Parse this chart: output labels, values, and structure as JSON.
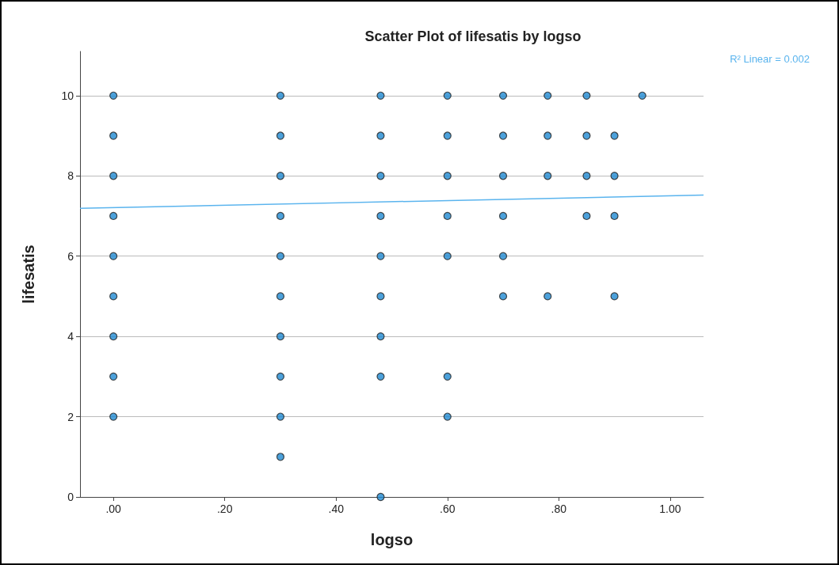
{
  "chart_data": {
    "type": "scatter",
    "title": "Scatter Plot of lifesatis by logso",
    "xlabel": "logso",
    "ylabel": "lifesatis",
    "annotations": [
      "R² Linear = 0.002"
    ],
    "xlim": [
      -0.06,
      1.06
    ],
    "xticks": [
      {
        "value": 0,
        "label": ".00"
      },
      {
        "value": 0.2,
        "label": ".20"
      },
      {
        "value": 0.4,
        "label": ".40"
      },
      {
        "value": 0.6,
        "label": ".60"
      },
      {
        "value": 0.8,
        "label": ".80"
      },
      {
        "value": 1,
        "label": "1.00"
      }
    ],
    "ylim": [
      0,
      11.1
    ],
    "yticks": [
      0,
      2,
      4,
      6,
      8,
      10
    ],
    "grid": "y",
    "marker": "circle",
    "series": [
      {
        "color": "#1f8ad2",
        "x": [
          0,
          0,
          0,
          0,
          0,
          0,
          0,
          0,
          0,
          0.3,
          0.3,
          0.3,
          0.3,
          0.3,
          0.3,
          0.3,
          0.3,
          0.3,
          0.3,
          0.48,
          0.48,
          0.48,
          0.48,
          0.48,
          0.48,
          0.48,
          0.48,
          0.48,
          0.6,
          0.6,
          0.6,
          0.6,
          0.6,
          0.6,
          0.6,
          0.7,
          0.7,
          0.7,
          0.7,
          0.7,
          0.7,
          0.78,
          0.78,
          0.78,
          0.78,
          0.85,
          0.85,
          0.85,
          0.85,
          0.9,
          0.9,
          0.9,
          0.9,
          0.95
        ],
        "values": [
          10,
          9,
          8,
          7,
          6,
          5,
          4,
          3,
          2,
          10,
          9,
          8,
          7,
          6,
          5,
          4,
          3,
          2,
          1,
          10,
          9,
          8,
          7,
          6,
          5,
          4,
          3,
          0,
          10,
          9,
          8,
          7,
          6,
          3,
          2,
          10,
          9,
          8,
          7,
          6,
          5,
          10,
          9,
          8,
          5,
          10,
          9,
          8,
          7,
          9,
          8,
          7,
          5,
          10
        ]
      },
      {
        "type": "line",
        "color": "#5ab4ee",
        "marker": "none",
        "x": [
          -0.06,
          1.06
        ],
        "values": [
          7.19,
          7.52
        ]
      }
    ]
  }
}
